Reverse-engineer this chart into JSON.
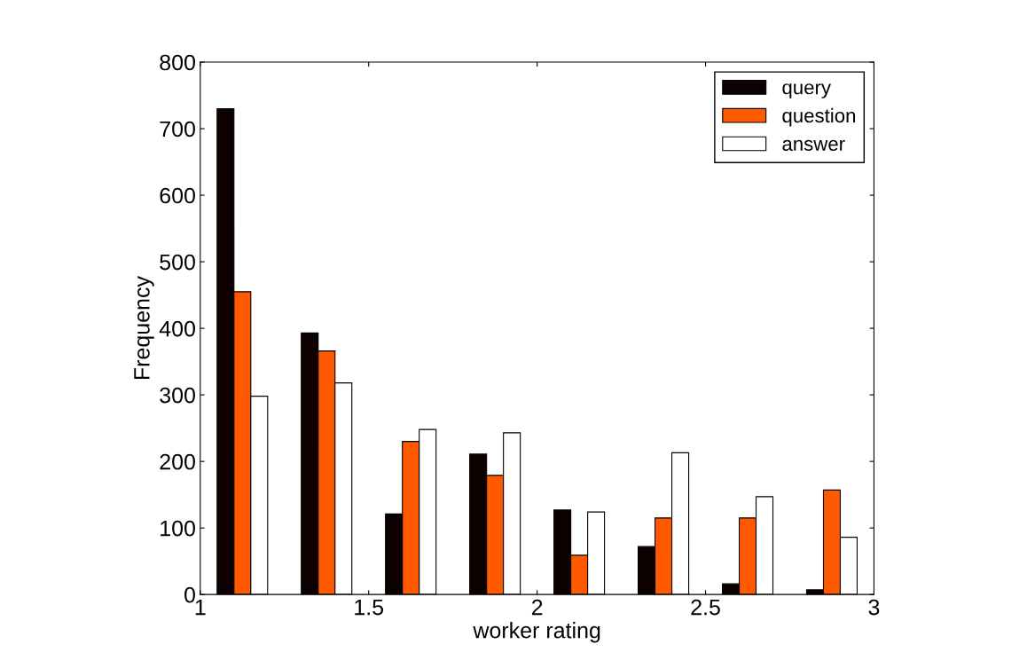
{
  "chart_data": {
    "type": "bar",
    "xlabel": "worker rating",
    "ylabel": "Frequency",
    "x": [
      1.125,
      1.375,
      1.625,
      1.875,
      2.125,
      2.375,
      2.625,
      2.875
    ],
    "series": [
      {
        "name": "query",
        "color": "#0d0000",
        "values": [
          730,
          393,
          121,
          211,
          127,
          72,
          16,
          7
        ]
      },
      {
        "name": "question",
        "color": "#ff5a00",
        "values": [
          455,
          366,
          230,
          179,
          59,
          115,
          115,
          157
        ]
      },
      {
        "name": "answer",
        "color": "#ffffff",
        "values": [
          298,
          318,
          248,
          243,
          124,
          213,
          147,
          86
        ]
      }
    ],
    "xlim": [
      1,
      3
    ],
    "xticks": [
      1,
      1.5,
      2,
      2.5,
      3
    ],
    "ylim": [
      0,
      800
    ],
    "yticks": [
      0,
      100,
      200,
      300,
      400,
      500,
      600,
      700,
      800
    ],
    "grid": false,
    "legend": "top right"
  }
}
